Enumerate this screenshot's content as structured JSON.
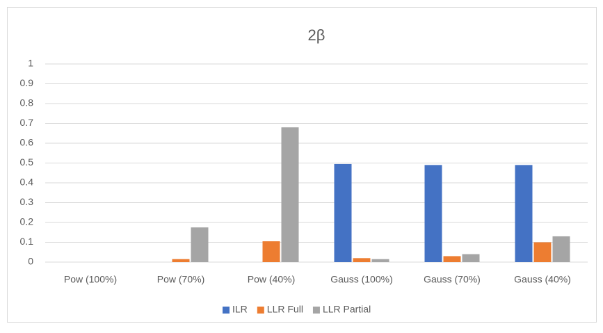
{
  "chart_data": {
    "type": "bar",
    "title": "2β",
    "categories": [
      "Pow (100%)",
      "Pow (70%)",
      "Pow (40%)",
      "Gauss (100%)",
      "Gauss (70%)",
      "Gauss (40%)"
    ],
    "series": [
      {
        "name": "ILR",
        "color": "#4472c4",
        "values": [
          0,
          0,
          0,
          0.495,
          0.49,
          0.49
        ]
      },
      {
        "name": "LLR Full",
        "color": "#ed7d31",
        "values": [
          0,
          0.015,
          0.105,
          0.02,
          0.03,
          0.1
        ]
      },
      {
        "name": "LLR Partial",
        "color": "#a5a5a5",
        "values": [
          0,
          0.175,
          0.68,
          0.015,
          0.04,
          0.13
        ]
      }
    ],
    "ylim": [
      0,
      1
    ],
    "yticks": [
      0,
      0.1,
      0.2,
      0.3,
      0.4,
      0.5,
      0.6,
      0.7,
      0.8,
      0.9,
      1
    ],
    "grid": true,
    "legend": "bottom"
  }
}
